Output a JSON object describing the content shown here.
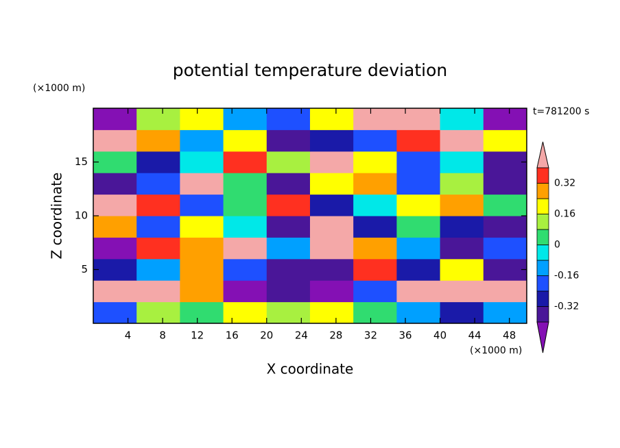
{
  "chart_data": {
    "type": "contour",
    "title": "potential temperature deviation",
    "x_label": "X coordinate",
    "y_label": "Z coordinate",
    "x_unit": "(×1000 m)",
    "y_unit": "(×1000 m)",
    "annotation": "t=781200 s",
    "xlim": [
      0,
      50
    ],
    "ylim": [
      0,
      20
    ],
    "xticks": [
      4,
      8,
      12,
      16,
      20,
      24,
      28,
      32,
      36,
      40,
      44,
      48
    ],
    "yticks": [
      5,
      10,
      15
    ],
    "levels": [
      -0.4,
      -0.32,
      -0.24,
      -0.16,
      -0.08,
      0,
      0.08,
      0.16,
      0.24,
      0.32,
      0.4
    ],
    "colors": [
      "#8410b4",
      "#4a1698",
      "#1a1aa8",
      "#1e50ff",
      "#00a0ff",
      "#00e8e8",
      "#30dc70",
      "#a8f040",
      "#ffff00",
      "#ffa000",
      "#ff3020",
      "#f4a8a8"
    ],
    "colorbar_ticks": [
      -0.32,
      -0.16,
      0,
      0.16,
      0.32
    ],
    "z": [
      [
        -0.2,
        0.12,
        0.04,
        0.2,
        0.12,
        0.2,
        0.04,
        -0.12,
        -0.28,
        -0.12
      ],
      [
        0.44,
        0.44,
        0.28,
        -0.44,
        -0.36,
        -0.44,
        -0.2,
        0.44,
        0.44,
        0.44
      ],
      [
        -0.28,
        -0.12,
        0.28,
        -0.2,
        -0.36,
        -0.36,
        0.36,
        -0.28,
        0.2,
        -0.36
      ],
      [
        -0.44,
        0.36,
        0.28,
        0.44,
        -0.12,
        0.44,
        0.28,
        -0.12,
        -0.36,
        -0.2
      ],
      [
        0.28,
        -0.2,
        0.2,
        -0.04,
        -0.36,
        0.44,
        -0.28,
        0.04,
        -0.28,
        -0.36
      ],
      [
        0.44,
        0.36,
        -0.2,
        0.04,
        0.36,
        -0.28,
        -0.04,
        0.2,
        0.28,
        0.04
      ],
      [
        -0.36,
        -0.2,
        0.44,
        0.04,
        -0.36,
        0.2,
        0.28,
        -0.2,
        0.12,
        -0.36
      ],
      [
        0.04,
        -0.28,
        -0.04,
        0.36,
        0.12,
        0.44,
        0.2,
        -0.2,
        -0.04,
        -0.36
      ],
      [
        0.44,
        0.28,
        -0.12,
        0.2,
        -0.36,
        -0.28,
        -0.2,
        0.36,
        0.44,
        0.2
      ],
      [
        -0.44,
        0.12,
        0.2,
        -0.12,
        -0.2,
        0.2,
        0.44,
        0.44,
        -0.04,
        -0.44
      ]
    ]
  }
}
